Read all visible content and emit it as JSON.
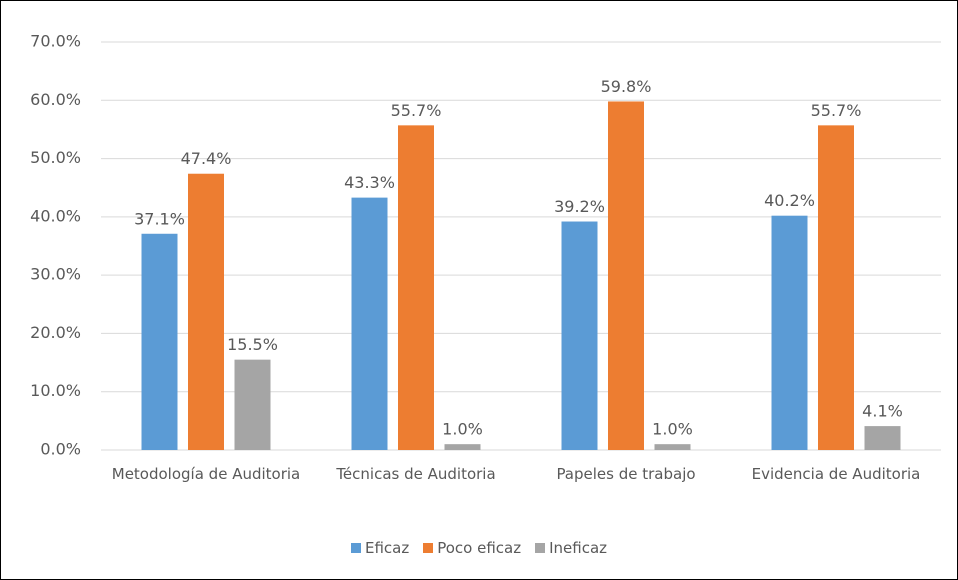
{
  "chart_data": {
    "type": "bar",
    "categories": [
      "Metodología de Auditoria",
      "Técnicas de Auditoria",
      "Papeles de trabajo",
      "Evidencia de Auditoria"
    ],
    "series": [
      {
        "name": "Eficaz",
        "color": "#5b9bd5",
        "values": [
          37.1,
          43.3,
          39.2,
          40.2
        ],
        "value_labels": [
          "37.1%",
          "43.3%",
          "39.2%",
          "40.2%"
        ]
      },
      {
        "name": "Poco eficaz",
        "color": "#ed7d31",
        "values": [
          47.4,
          55.7,
          59.8,
          55.7
        ],
        "value_labels": [
          "47.4%",
          "55.7%",
          "59.8%",
          "55.7%"
        ]
      },
      {
        "name": "Ineficaz",
        "color": "#a5a5a5",
        "values": [
          15.5,
          1.0,
          1.0,
          4.1
        ],
        "value_labels": [
          "15.5%",
          "1.0%",
          "1.0%",
          "4.1%"
        ]
      }
    ],
    "ylim": [
      0,
      70
    ],
    "yticks": [
      {
        "value": 0,
        "label": "0.0%"
      },
      {
        "value": 10,
        "label": "10.0%"
      },
      {
        "value": 20,
        "label": "20.0%"
      },
      {
        "value": 30,
        "label": "30.0%"
      },
      {
        "value": 40,
        "label": "40.0%"
      },
      {
        "value": 50,
        "label": "50.0%"
      },
      {
        "value": 60,
        "label": "60.0%"
      },
      {
        "value": 70,
        "label": "70.0%"
      }
    ],
    "grid": true,
    "legend": "bottom"
  }
}
